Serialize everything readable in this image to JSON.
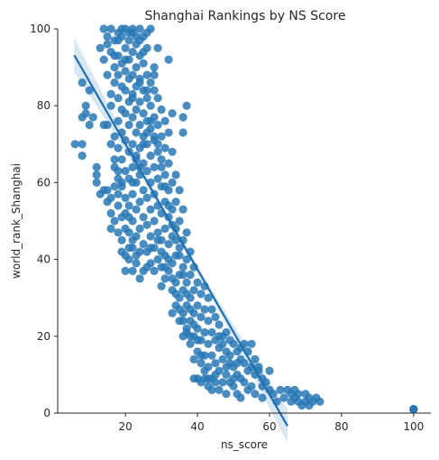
{
  "chart_data": {
    "type": "scatter",
    "title": "Shanghai Rankings by NS Score",
    "xlabel": "ns_score",
    "ylabel": "world_rank_Shanghai",
    "xlim": [
      1.2,
      104.8
    ],
    "ylim": [
      0,
      100
    ],
    "xticks": [
      "20",
      "40",
      "60",
      "80",
      "100"
    ],
    "xtick_values": [
      20,
      40,
      60,
      80,
      100
    ],
    "yticks": [
      "0",
      "20",
      "40",
      "60",
      "80",
      "100"
    ],
    "ytick_values": [
      0,
      20,
      40,
      60,
      80,
      100
    ],
    "grid": false,
    "color": "#2878b5",
    "regression": {
      "slope": -1.63,
      "intercept": 102.6,
      "x_start": 5.8,
      "x_end": 65
    },
    "points": [
      [
        6,
        70
      ],
      [
        8,
        67
      ],
      [
        8,
        70
      ],
      [
        8,
        77
      ],
      [
        9,
        78
      ],
      [
        9,
        80
      ],
      [
        10,
        84
      ],
      [
        10,
        75
      ],
      [
        11,
        77
      ],
      [
        8,
        86
      ],
      [
        12,
        62
      ],
      [
        12,
        60
      ],
      [
        14,
        75
      ],
      [
        15,
        75
      ],
      [
        15,
        58
      ],
      [
        16,
        56
      ],
      [
        16,
        52
      ],
      [
        13,
        95
      ],
      [
        14,
        92
      ],
      [
        15,
        88
      ],
      [
        15,
        96
      ],
      [
        16,
        100
      ],
      [
        16,
        83
      ],
      [
        16,
        80
      ],
      [
        17,
        97
      ],
      [
        17,
        90
      ],
      [
        17,
        86
      ],
      [
        17,
        72
      ],
      [
        17,
        64
      ],
      [
        18,
        99
      ],
      [
        18,
        93
      ],
      [
        18,
        88
      ],
      [
        18,
        82
      ],
      [
        18,
        76
      ],
      [
        18,
        69
      ],
      [
        18,
        61
      ],
      [
        18,
        54
      ],
      [
        19,
        98
      ],
      [
        19,
        91
      ],
      [
        19,
        85
      ],
      [
        19,
        79
      ],
      [
        19,
        73
      ],
      [
        19,
        66
      ],
      [
        19,
        59
      ],
      [
        19,
        51
      ],
      [
        19,
        45
      ],
      [
        20,
        100
      ],
      [
        20,
        95
      ],
      [
        20,
        89
      ],
      [
        20,
        84
      ],
      [
        20,
        78
      ],
      [
        20,
        71
      ],
      [
        20,
        63
      ],
      [
        20,
        56
      ],
      [
        20,
        48
      ],
      [
        20,
        41
      ],
      [
        21,
        97
      ],
      [
        21,
        92
      ],
      [
        21,
        87
      ],
      [
        21,
        81
      ],
      [
        21,
        75
      ],
      [
        21,
        68
      ],
      [
        21,
        61
      ],
      [
        21,
        54
      ],
      [
        21,
        47
      ],
      [
        21,
        40
      ],
      [
        22,
        99
      ],
      [
        22,
        94
      ],
      [
        22,
        88
      ],
      [
        22,
        83
      ],
      [
        22,
        77
      ],
      [
        22,
        70
      ],
      [
        22,
        64
      ],
      [
        22,
        57
      ],
      [
        22,
        50
      ],
      [
        22,
        43
      ],
      [
        22,
        37
      ],
      [
        23,
        96
      ],
      [
        23,
        90
      ],
      [
        23,
        85
      ],
      [
        23,
        79
      ],
      [
        23,
        73
      ],
      [
        23,
        66
      ],
      [
        23,
        60
      ],
      [
        23,
        53
      ],
      [
        23,
        46
      ],
      [
        23,
        39
      ],
      [
        24,
        100
      ],
      [
        24,
        93
      ],
      [
        24,
        87
      ],
      [
        24,
        81
      ],
      [
        24,
        75
      ],
      [
        24,
        69
      ],
      [
        24,
        62
      ],
      [
        24,
        55
      ],
      [
        24,
        48
      ],
      [
        24,
        42
      ],
      [
        25,
        98
      ],
      [
        25,
        91
      ],
      [
        25,
        84
      ],
      [
        25,
        78
      ],
      [
        25,
        72
      ],
      [
        25,
        65
      ],
      [
        25,
        58
      ],
      [
        25,
        51
      ],
      [
        25,
        44
      ],
      [
        26,
        95
      ],
      [
        26,
        88
      ],
      [
        26,
        82
      ],
      [
        26,
        76
      ],
      [
        26,
        70
      ],
      [
        26,
        63
      ],
      [
        26,
        56
      ],
      [
        26,
        49
      ],
      [
        26,
        42
      ],
      [
        27,
        86
      ],
      [
        27,
        80
      ],
      [
        27,
        74
      ],
      [
        27,
        67
      ],
      [
        27,
        60
      ],
      [
        27,
        53
      ],
      [
        27,
        46
      ],
      [
        27,
        39
      ],
      [
        28,
        90
      ],
      [
        28,
        84
      ],
      [
        28,
        77
      ],
      [
        28,
        71
      ],
      [
        28,
        64
      ],
      [
        28,
        57
      ],
      [
        28,
        50
      ],
      [
        28,
        43
      ],
      [
        28,
        37
      ],
      [
        29,
        95
      ],
      [
        29,
        82
      ],
      [
        29,
        75
      ],
      [
        29,
        68
      ],
      [
        29,
        61
      ],
      [
        29,
        54
      ],
      [
        29,
        47
      ],
      [
        29,
        40
      ],
      [
        30,
        79
      ],
      [
        30,
        72
      ],
      [
        30,
        66
      ],
      [
        30,
        59
      ],
      [
        30,
        52
      ],
      [
        30,
        45
      ],
      [
        30,
        38
      ],
      [
        30,
        33
      ],
      [
        31,
        76
      ],
      [
        31,
        69
      ],
      [
        31,
        62
      ],
      [
        31,
        55
      ],
      [
        31,
        48
      ],
      [
        31,
        41
      ],
      [
        31,
        35
      ],
      [
        32,
        92
      ],
      [
        32,
        73
      ],
      [
        32,
        65
      ],
      [
        32,
        58
      ],
      [
        32,
        51
      ],
      [
        32,
        44
      ],
      [
        32,
        37
      ],
      [
        33,
        78
      ],
      [
        33,
        68
      ],
      [
        33,
        60
      ],
      [
        33,
        53
      ],
      [
        33,
        46
      ],
      [
        33,
        39
      ],
      [
        33,
        32
      ],
      [
        33,
        26
      ],
      [
        34,
        62
      ],
      [
        34,
        55
      ],
      [
        34,
        48
      ],
      [
        34,
        41
      ],
      [
        34,
        34
      ],
      [
        34,
        28
      ],
      [
        35,
        58
      ],
      [
        35,
        50
      ],
      [
        35,
        43
      ],
      [
        35,
        36
      ],
      [
        35,
        30
      ],
      [
        35,
        24
      ],
      [
        36,
        77
      ],
      [
        36,
        73
      ],
      [
        36,
        53
      ],
      [
        36,
        45
      ],
      [
        36,
        38
      ],
      [
        36,
        32
      ],
      [
        36,
        26
      ],
      [
        36,
        20
      ],
      [
        37,
        80
      ],
      [
        37,
        47
      ],
      [
        37,
        40
      ],
      [
        37,
        34
      ],
      [
        37,
        28
      ],
      [
        37,
        22
      ],
      [
        38,
        42
      ],
      [
        38,
        36
      ],
      [
        38,
        30
      ],
      [
        38,
        24
      ],
      [
        38,
        18
      ],
      [
        39,
        38
      ],
      [
        39,
        32
      ],
      [
        39,
        26
      ],
      [
        39,
        20
      ],
      [
        39,
        14
      ],
      [
        39,
        9
      ],
      [
        40,
        34
      ],
      [
        40,
        28
      ],
      [
        40,
        22
      ],
      [
        40,
        16
      ],
      [
        40,
        9
      ],
      [
        41,
        31
      ],
      [
        41,
        25
      ],
      [
        41,
        19
      ],
      [
        41,
        13
      ],
      [
        41,
        8
      ],
      [
        42,
        33
      ],
      [
        42,
        27
      ],
      [
        42,
        21
      ],
      [
        42,
        15
      ],
      [
        42,
        9
      ],
      [
        43,
        30
      ],
      [
        43,
        24
      ],
      [
        43,
        18
      ],
      [
        43,
        12
      ],
      [
        43,
        7
      ],
      [
        44,
        27
      ],
      [
        44,
        21
      ],
      [
        44,
        15
      ],
      [
        44,
        9
      ],
      [
        45,
        25
      ],
      [
        45,
        19
      ],
      [
        45,
        13
      ],
      [
        45,
        8
      ],
      [
        46,
        23
      ],
      [
        46,
        17
      ],
      [
        46,
        11
      ],
      [
        46,
        6
      ],
      [
        47,
        20
      ],
      [
        47,
        14
      ],
      [
        47,
        8
      ],
      [
        48,
        21
      ],
      [
        48,
        16
      ],
      [
        48,
        10
      ],
      [
        48,
        5
      ],
      [
        49,
        19
      ],
      [
        49,
        13
      ],
      [
        49,
        8
      ],
      [
        50,
        18
      ],
      [
        50,
        12
      ],
      [
        50,
        7
      ],
      [
        51,
        16
      ],
      [
        51,
        10
      ],
      [
        51,
        5
      ],
      [
        52,
        14
      ],
      [
        52,
        9
      ],
      [
        52,
        4
      ],
      [
        53,
        13
      ],
      [
        53,
        8
      ],
      [
        54,
        11
      ],
      [
        54,
        6
      ],
      [
        55,
        12
      ],
      [
        55,
        7
      ],
      [
        56,
        10
      ],
      [
        56,
        5
      ],
      [
        57,
        11
      ],
      [
        58,
        9
      ],
      [
        58,
        4
      ],
      [
        59,
        8
      ],
      [
        60,
        11
      ],
      [
        60,
        6
      ],
      [
        61,
        5
      ],
      [
        62,
        3
      ],
      [
        63,
        6
      ],
      [
        64,
        4
      ],
      [
        65,
        6
      ],
      [
        66,
        5
      ],
      [
        66,
        3
      ],
      [
        67,
        6
      ],
      [
        67,
        4
      ],
      [
        68,
        3
      ],
      [
        68,
        5
      ],
      [
        69,
        2
      ],
      [
        70,
        3
      ],
      [
        70,
        5
      ],
      [
        71,
        2
      ],
      [
        71,
        4
      ],
      [
        72,
        3
      ],
      [
        73,
        4
      ],
      [
        74,
        3
      ],
      [
        14,
        100
      ],
      [
        15,
        98
      ],
      [
        16,
        94
      ],
      [
        17,
        93
      ],
      [
        18,
        97
      ],
      [
        19,
        100
      ],
      [
        20,
        92
      ],
      [
        21,
        99
      ],
      [
        22,
        100
      ],
      [
        23,
        98
      ],
      [
        24,
        97
      ],
      [
        25,
        94
      ],
      [
        26,
        99
      ],
      [
        27,
        100
      ],
      [
        16,
        70
      ],
      [
        17,
        66
      ],
      [
        18,
        63
      ],
      [
        17,
        59
      ],
      [
        18,
        57
      ],
      [
        19,
        60
      ],
      [
        20,
        52
      ],
      [
        21,
        51
      ],
      [
        22,
        60
      ],
      [
        23,
        67
      ],
      [
        24,
        64
      ],
      [
        25,
        70
      ],
      [
        26,
        73
      ],
      [
        27,
        76
      ],
      [
        28,
        72
      ],
      [
        29,
        70
      ],
      [
        30,
        64
      ],
      [
        31,
        59
      ],
      [
        32,
        54
      ],
      [
        33,
        49
      ],
      [
        34,
        45
      ],
      [
        35,
        41
      ],
      [
        36,
        36
      ],
      [
        37,
        31
      ],
      [
        38,
        27
      ],
      [
        39,
        23
      ],
      [
        40,
        19
      ],
      [
        41,
        15
      ],
      [
        42,
        11
      ],
      [
        43,
        9
      ],
      [
        44,
        6
      ],
      [
        45,
        10
      ],
      [
        46,
        20
      ],
      [
        47,
        18
      ],
      [
        48,
        12
      ],
      [
        49,
        15
      ],
      [
        50,
        9
      ],
      [
        51,
        13
      ],
      [
        52,
        17
      ],
      [
        53,
        18
      ],
      [
        54,
        16
      ],
      [
        55,
        18
      ],
      [
        56,
        14
      ],
      [
        57,
        12
      ],
      [
        58,
        7
      ],
      [
        29,
        45
      ],
      [
        30,
        42
      ],
      [
        31,
        38
      ],
      [
        32,
        40
      ],
      [
        33,
        35
      ],
      [
        34,
        31
      ],
      [
        35,
        27
      ],
      [
        36,
        24
      ],
      [
        37,
        21
      ],
      [
        38,
        20
      ],
      [
        27,
        43
      ],
      [
        26,
        38
      ],
      [
        25,
        37
      ],
      [
        24,
        35
      ],
      [
        23,
        41
      ],
      [
        22,
        45
      ],
      [
        21,
        43
      ],
      [
        20,
        37
      ],
      [
        19,
        42
      ],
      [
        18,
        47
      ],
      [
        17,
        50
      ],
      [
        16,
        48
      ],
      [
        15,
        55
      ],
      [
        14,
        58
      ],
      [
        13,
        57
      ],
      [
        12,
        64
      ],
      [
        22,
        82
      ],
      [
        24,
        86
      ],
      [
        26,
        84
      ],
      [
        28,
        88
      ],
      [
        100,
        1
      ],
      [
        100,
        1
      ],
      [
        100,
        1
      ],
      [
        100,
        1
      ],
      [
        100,
        1
      ]
    ]
  }
}
